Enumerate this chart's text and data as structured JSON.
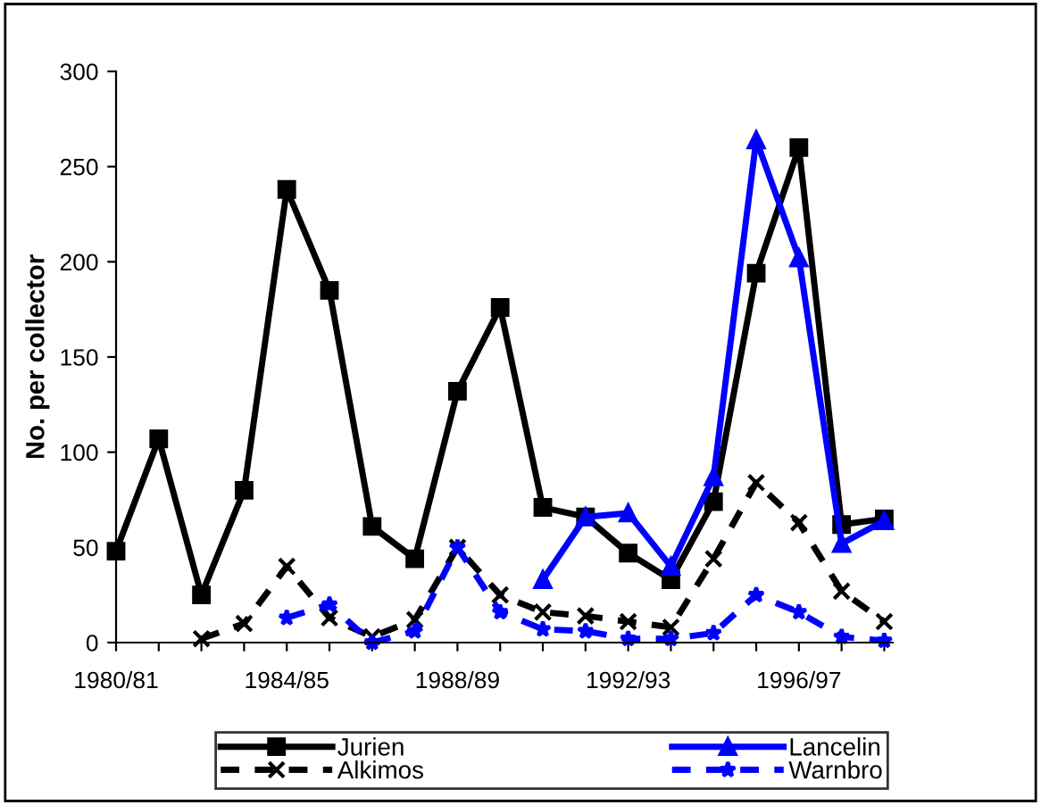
{
  "chart_data": {
    "type": "line",
    "ylabel": "No. per collector",
    "categories": [
      "1980/81",
      null,
      null,
      null,
      "1984/85",
      null,
      null,
      null,
      "1988/89",
      null,
      null,
      null,
      "1992/93",
      null,
      null,
      null,
      "1996/97",
      null,
      null
    ],
    "series": [
      {
        "name": "Jurien",
        "color": "#000000",
        "marker": "square",
        "line_style": "solid",
        "values": [
          48,
          107,
          25,
          80,
          238,
          185,
          61,
          44,
          132,
          176,
          71,
          66,
          47,
          33,
          74,
          194,
          260,
          62,
          65
        ]
      },
      {
        "name": "Lancelin",
        "color": "#0000ff",
        "marker": "triangle",
        "line_style": "solid",
        "values": [
          null,
          null,
          null,
          null,
          null,
          null,
          null,
          null,
          null,
          null,
          33,
          66,
          68,
          40,
          87,
          264,
          202,
          52,
          64
        ]
      },
      {
        "name": "Alkimos",
        "color": "#000000",
        "marker": "cross",
        "line_style": "dashed",
        "values": [
          null,
          null,
          2,
          10,
          40,
          13,
          3,
          12,
          50,
          25,
          16,
          14,
          11,
          8,
          44,
          84,
          63,
          27,
          11
        ]
      },
      {
        "name": "Warnbro",
        "color": "#0000ff",
        "marker": "star",
        "line_style": "dashed",
        "values": [
          null,
          null,
          null,
          null,
          13,
          20,
          0,
          6,
          50,
          16,
          7,
          6,
          2,
          2,
          5,
          25,
          16,
          3,
          1
        ]
      }
    ],
    "ylim": [
      0,
      300
    ],
    "yticks": [
      0,
      50,
      100,
      150,
      200,
      250,
      300
    ],
    "grid": false,
    "legend": "bottom"
  }
}
